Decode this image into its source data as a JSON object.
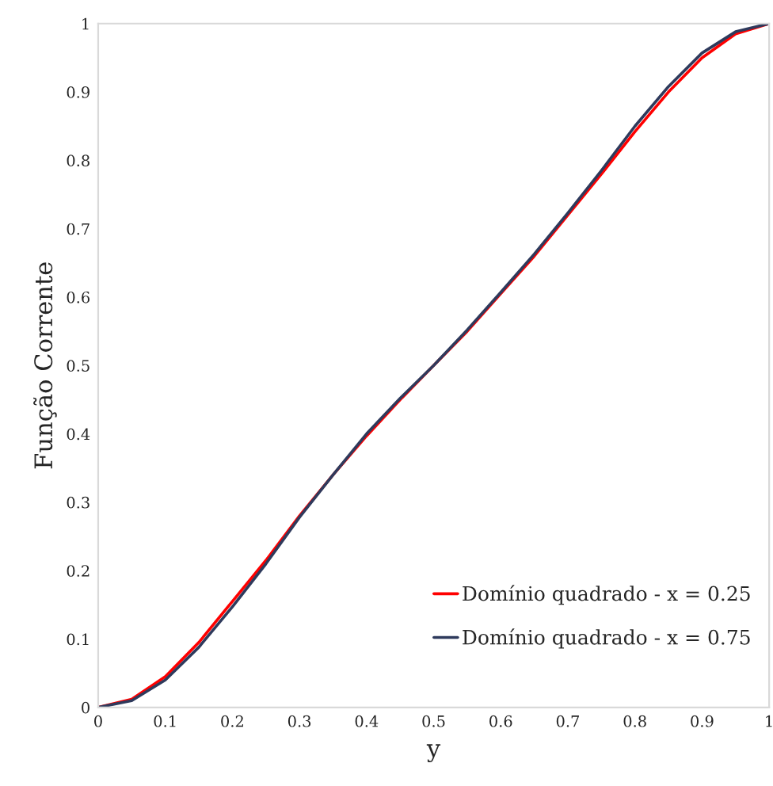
{
  "chart_data": {
    "type": "line",
    "xlabel": "y",
    "ylabel": "Função Corrente",
    "x": [
      0,
      0.05,
      0.1,
      0.15,
      0.2,
      0.25,
      0.3,
      0.35,
      0.4,
      0.45,
      0.5,
      0.55,
      0.6,
      0.65,
      0.7,
      0.75,
      0.8,
      0.85,
      0.9,
      0.95,
      1
    ],
    "series": [
      {
        "name": "Domínio quadrado - x = 0.25",
        "color": "#ff0000",
        "values": [
          0,
          0.012,
          0.045,
          0.095,
          0.155,
          0.215,
          0.28,
          0.34,
          0.397,
          0.45,
          0.5,
          0.55,
          0.605,
          0.66,
          0.72,
          0.78,
          0.842,
          0.9,
          0.95,
          0.985,
          1
        ]
      },
      {
        "name": "Domínio quadrado - x = 0.75",
        "color": "#2e3a5c",
        "values": [
          0,
          0.01,
          0.04,
          0.088,
          0.147,
          0.21,
          0.278,
          0.34,
          0.4,
          0.452,
          0.5,
          0.552,
          0.607,
          0.663,
          0.723,
          0.785,
          0.85,
          0.908,
          0.957,
          0.988,
          1
        ]
      }
    ],
    "xlim": [
      0,
      1
    ],
    "ylim": [
      0,
      1
    ],
    "xticks": [
      0,
      0.1,
      0.2,
      0.3,
      0.4,
      0.5,
      0.6,
      0.7,
      0.8,
      0.9,
      1
    ],
    "yticks": [
      0,
      0.1,
      0.2,
      0.3,
      0.4,
      0.5,
      0.6,
      0.7,
      0.8,
      0.9,
      1
    ],
    "grid": false,
    "legend": "bottom right",
    "marker": "none",
    "line_style": "solid"
  }
}
